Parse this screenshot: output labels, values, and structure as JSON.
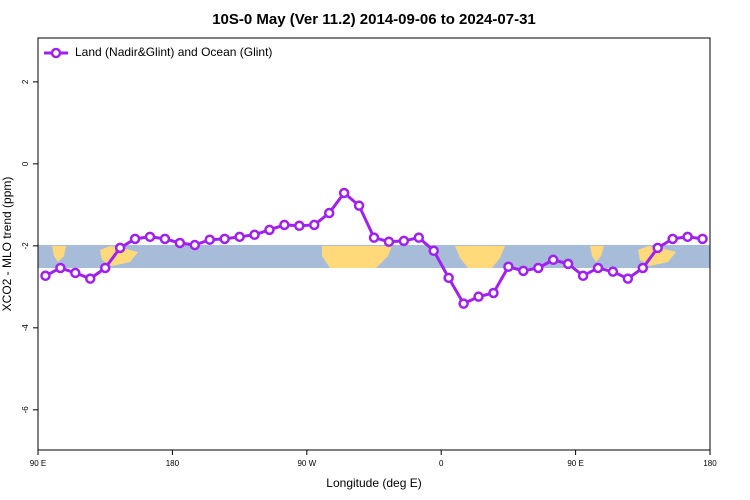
{
  "chart_data": {
    "type": "line",
    "title": "10S-0 May (Ver 11.2)   2014-09-06 to 2024-07-31",
    "x_label": "Longitude (deg E)",
    "y_label": "XCO2 - MLO trend (ppm)",
    "xlim": [
      90,
      540
    ],
    "ylim": [
      -6.98,
      3.07
    ],
    "xticks": [
      {
        "value": 90,
        "label": "90 E"
      },
      180,
      {
        "value": 270,
        "label": "90 W"
      },
      {
        "value": 360,
        "label": "0"
      },
      {
        "value": 450,
        "label": "90 E"
      },
      {
        "value": 540,
        "label": "180"
      }
    ],
    "yticks": [
      -6,
      -4,
      -2,
      0,
      2
    ],
    "legend": "upper left",
    "x": [
      95,
      105,
      115,
      125,
      135,
      145,
      155,
      165,
      175,
      185,
      195,
      205,
      215,
      225,
      235,
      245,
      255,
      265,
      275,
      285,
      295,
      305,
      315,
      325,
      335,
      345,
      355,
      365,
      375,
      385,
      395,
      405,
      415,
      425,
      435,
      445,
      455,
      465,
      475,
      485,
      495,
      505,
      515,
      525,
      535
    ],
    "series": [
      {
        "name": "Land (Nadir&Glint) and Ocean (Glint)",
        "color": "#a020f0",
        "values": [
          -2.73,
          -2.54,
          -2.66,
          -2.8,
          -2.54,
          -2.05,
          -1.83,
          -1.78,
          -1.83,
          -1.93,
          -1.98,
          -1.85,
          -1.83,
          -1.78,
          -1.73,
          -1.61,
          -1.49,
          -1.51,
          -1.49,
          -1.2,
          -0.71,
          -1.02,
          -1.8,
          -1.9,
          -1.88,
          -1.8,
          -2.12,
          -2.78,
          -3.41,
          -3.24,
          -3.15,
          -2.51,
          -2.61,
          -2.54,
          -2.34,
          -2.44,
          -2.73,
          -2.54,
          -2.63,
          -2.8,
          -2.54,
          -2.05,
          -1.83,
          -1.78,
          -1.83
        ]
      }
    ]
  }
}
